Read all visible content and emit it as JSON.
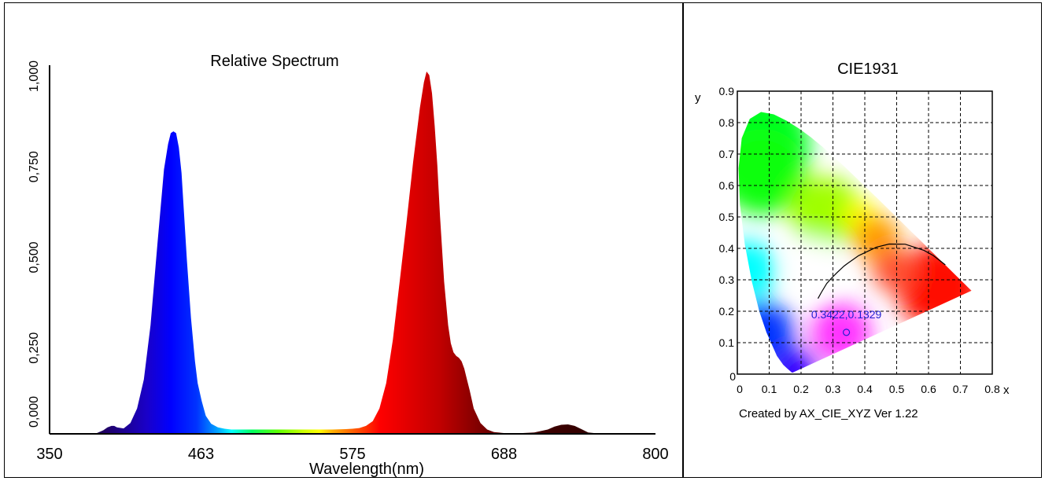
{
  "chart_data": [
    {
      "type": "area",
      "title": "Relative Spectrum",
      "xlabel": "Wavelength(nm)",
      "ylabel": "",
      "xlim": [
        350,
        800
      ],
      "ylim": [
        0,
        1.0
      ],
      "x_ticks": [
        "350",
        "463",
        "575",
        "688",
        "800"
      ],
      "y_ticks": [
        "0,000",
        "0,250",
        "0,500",
        "0,750",
        "1,000"
      ],
      "grid": false,
      "fill": "wavelength-colored gradient",
      "series": [
        {
          "x": [
            350,
            385,
            390,
            393,
            396,
            398,
            400,
            405,
            410,
            415,
            420,
            425,
            430,
            435,
            438,
            440,
            442,
            444,
            446,
            448,
            450,
            452,
            455,
            458,
            460,
            463,
            466,
            470,
            475,
            480,
            485,
            490,
            495,
            500,
            510,
            520,
            530,
            540,
            550,
            560,
            570,
            575,
            580,
            585,
            590,
            595,
            600,
            605,
            610,
            615,
            620,
            625,
            628,
            630,
            632,
            634,
            636,
            638,
            640,
            643,
            646,
            648,
            650,
            652,
            654,
            656,
            658,
            660,
            662,
            665,
            670,
            675,
            680,
            688,
            700,
            710,
            720,
            725,
            730,
            735,
            740,
            745,
            750,
            760,
            800
          ],
          "y": [
            0,
            0.002,
            0.01,
            0.018,
            0.022,
            0.022,
            0.018,
            0.015,
            0.03,
            0.07,
            0.15,
            0.3,
            0.52,
            0.73,
            0.8,
            0.83,
            0.835,
            0.83,
            0.79,
            0.72,
            0.6,
            0.48,
            0.32,
            0.2,
            0.14,
            0.09,
            0.05,
            0.028,
            0.018,
            0.014,
            0.012,
            0.012,
            0.012,
            0.012,
            0.012,
            0.012,
            0.012,
            0.012,
            0.012,
            0.012,
            0.013,
            0.014,
            0.016,
            0.022,
            0.035,
            0.07,
            0.14,
            0.26,
            0.42,
            0.58,
            0.75,
            0.9,
            0.97,
            1.0,
            0.99,
            0.94,
            0.85,
            0.74,
            0.6,
            0.42,
            0.3,
            0.25,
            0.225,
            0.215,
            0.21,
            0.2,
            0.18,
            0.15,
            0.12,
            0.07,
            0.03,
            0.012,
            0.005,
            0.002,
            0.002,
            0.004,
            0.012,
            0.02,
            0.025,
            0.026,
            0.022,
            0.013,
            0.004,
            0,
            0
          ]
        }
      ]
    },
    {
      "type": "scatter",
      "title": "CIE1931",
      "xlabel": "x",
      "ylabel": "y",
      "xlim": [
        0,
        0.8
      ],
      "ylim": [
        0,
        0.9
      ],
      "x_ticks": [
        "0",
        "0.1",
        "0.2",
        "0.3",
        "0.4",
        "0.5",
        "0.6",
        "0.7",
        "0.8"
      ],
      "y_ticks": [
        "0",
        "0.1",
        "0.2",
        "0.3",
        "0.4",
        "0.5",
        "0.6",
        "0.7",
        "0.8",
        "0.9"
      ],
      "grid": true,
      "gamut_locus": {
        "x": [
          0.1741,
          0.1738,
          0.1733,
          0.1726,
          0.1714,
          0.1689,
          0.1644,
          0.1566,
          0.144,
          0.1241,
          0.0913,
          0.0687,
          0.0454,
          0.0235,
          0.0082,
          0.0039,
          0.0139,
          0.0389,
          0.0743,
          0.1142,
          0.1547,
          0.1929,
          0.2296,
          0.2658,
          0.3016,
          0.3373,
          0.3731,
          0.4087,
          0.4441,
          0.4788,
          0.5125,
          0.5448,
          0.5752,
          0.6029,
          0.627,
          0.6482,
          0.6658,
          0.6801,
          0.6915,
          0.7006,
          0.7079,
          0.714,
          0.719,
          0.723,
          0.7347
        ],
        "y": [
          0.005,
          0.0049,
          0.0048,
          0.0048,
          0.0051,
          0.0069,
          0.0109,
          0.0177,
          0.0297,
          0.0578,
          0.1327,
          0.2007,
          0.295,
          0.4127,
          0.5384,
          0.6548,
          0.7502,
          0.812,
          0.8338,
          0.8262,
          0.8059,
          0.7816,
          0.7543,
          0.7243,
          0.6923,
          0.6589,
          0.6245,
          0.5896,
          0.5547,
          0.5202,
          0.4866,
          0.4544,
          0.4242,
          0.3965,
          0.3725,
          0.3514,
          0.334,
          0.3197,
          0.3083,
          0.2993,
          0.292,
          0.2859,
          0.2809,
          0.277,
          0.2653
        ]
      },
      "planckian_locus": {
        "x": [
          0.2531,
          0.2637,
          0.2806,
          0.2952,
          0.3135,
          0.3221,
          0.3346,
          0.3451,
          0.3805,
          0.4369,
          0.4764,
          0.5266,
          0.5857,
          0.6148,
          0.6526
        ],
        "y": [
          0.2404,
          0.2601,
          0.2883,
          0.3048,
          0.3236,
          0.3318,
          0.3434,
          0.3516,
          0.3768,
          0.4041,
          0.4138,
          0.4133,
          0.3935,
          0.3773,
          0.3474
        ]
      },
      "point": {
        "x": 0.3422,
        "y": 0.1329,
        "label": "0.3422,0.1329",
        "color": "#1f1fd0"
      }
    }
  ],
  "footer": {
    "caption": "Created by AX_CIE_XYZ Ver 1.22"
  }
}
